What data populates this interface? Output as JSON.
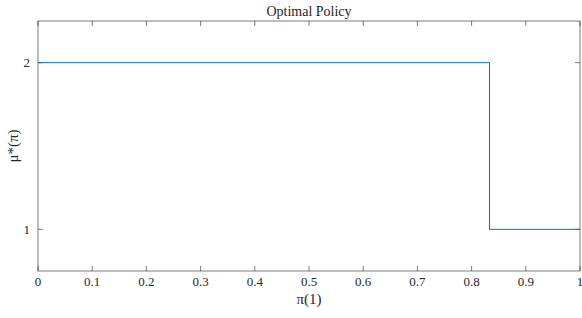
{
  "chart_data": {
    "type": "line",
    "title": "Optimal Policy",
    "xlabel": "π(1)",
    "ylabel": "μ*(π)",
    "x": [
      0,
      0.833,
      0.833,
      1
    ],
    "series": [
      {
        "name": "μ*(π)",
        "color": "#0072bd",
        "values": [
          2,
          2,
          1,
          1
        ]
      }
    ],
    "xlim": [
      0,
      1
    ],
    "xticks": [
      0,
      0.1,
      0.2,
      0.3,
      0.4,
      0.5,
      0.6,
      0.7,
      0.8,
      0.9,
      1
    ],
    "ylim": [
      0.75,
      2.25
    ],
    "yticks": [
      1,
      2
    ],
    "grid": false
  }
}
